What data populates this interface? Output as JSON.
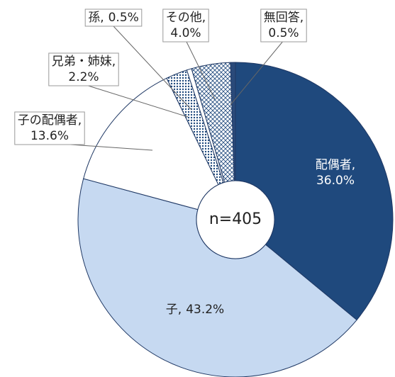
{
  "chart_data": {
    "type": "donut",
    "categories": [
      "配偶者",
      "子",
      "子の配偶者",
      "兄弟・姉妹",
      "孫",
      "その他",
      "無回答"
    ],
    "values": [
      36.0,
      43.2,
      13.6,
      2.2,
      0.5,
      4.0,
      0.5
    ],
    "value_labels": [
      "36.0%",
      "43.2%",
      "13.6%",
      "2.2%",
      "0.5%",
      "4.0%",
      "0.5%"
    ],
    "separator": ",",
    "colors": [
      "#1f497d",
      "#c6d9f1",
      "#ffffff",
      "#9db5dc",
      "#ffffff",
      "#e4ecf7",
      "#2a4a7a"
    ],
    "center_label": "n=405"
  }
}
